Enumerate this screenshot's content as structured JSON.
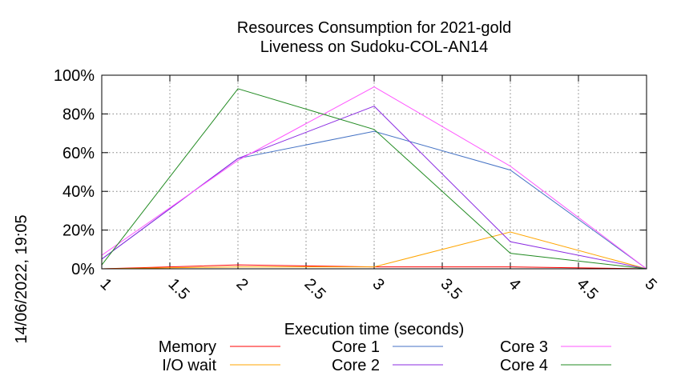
{
  "chart_data": {
    "type": "line",
    "title": "Resources Consumption for 2021-gold",
    "subtitle": "Liveness on Sudoku-COL-AN14",
    "xlabel": "Execution time (seconds)",
    "ylabel": "",
    "side_label": "14/06/2022, 19:05",
    "xlim": [
      1,
      5
    ],
    "ylim": [
      0,
      100
    ],
    "x_ticks": [
      "1",
      "1.5",
      "2",
      "2.5",
      "3",
      "3.5",
      "4",
      "4.5",
      "5"
    ],
    "y_ticks": [
      "0%",
      "20%",
      "40%",
      "60%",
      "80%",
      "100%"
    ],
    "grid": true,
    "legend_position": "bottom",
    "x": [
      1,
      2,
      3,
      4,
      5
    ],
    "series": [
      {
        "name": "Memory",
        "color": "#ff0000",
        "values": [
          0,
          2,
          1,
          1,
          0
        ]
      },
      {
        "name": "I/O wait",
        "color": "#ffa500",
        "values": [
          0,
          1,
          1,
          19,
          0
        ]
      },
      {
        "name": "Core 1",
        "color": "#4472c4",
        "values": [
          5,
          57,
          71,
          51,
          0
        ]
      },
      {
        "name": "Core 2",
        "color": "#8b2be2",
        "values": [
          5,
          57,
          84,
          14,
          0
        ]
      },
      {
        "name": "Core 3",
        "color": "#ff55ff",
        "values": [
          7,
          56,
          94,
          53,
          0
        ]
      },
      {
        "name": "Core 4",
        "color": "#228b22",
        "values": [
          2,
          93,
          72,
          8,
          0
        ]
      }
    ]
  }
}
